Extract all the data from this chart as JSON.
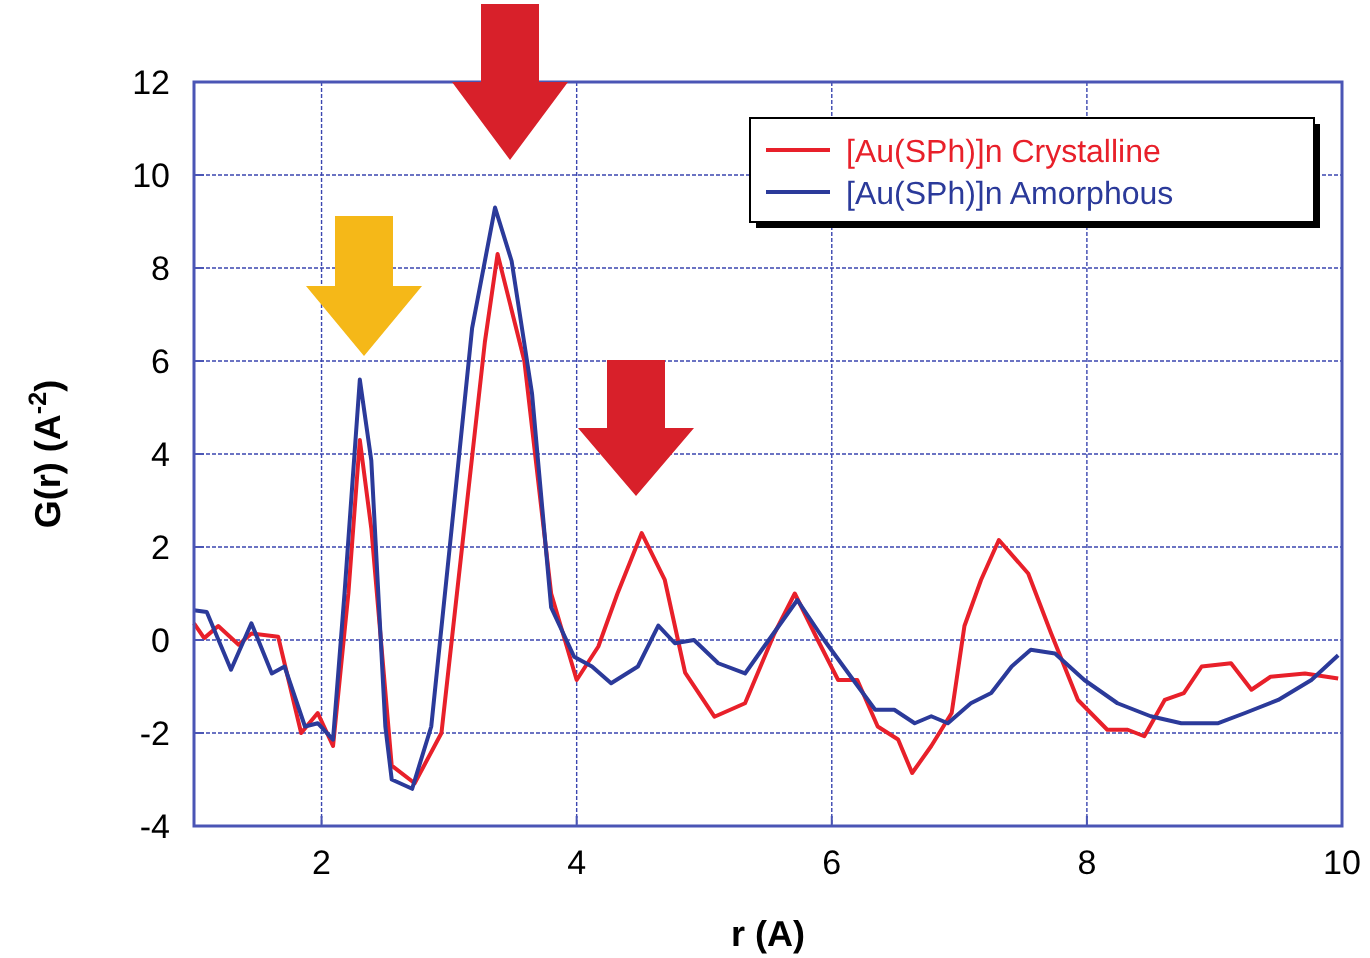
{
  "chart_data": {
    "type": "line",
    "xlabel": "r (A)",
    "ylabel": "G(r) (A$^{-2}$)",
    "xlim": [
      1,
      10
    ],
    "xticks": [
      2,
      4,
      6,
      8,
      10
    ],
    "ylim": [
      -4,
      12
    ],
    "yticks": [
      -4,
      -2,
      0,
      2,
      4,
      6,
      8,
      10,
      12
    ],
    "grid": true,
    "legend": "top right",
    "line_style": "solid",
    "marker": "none",
    "series": [
      {
        "name": "[Au(SPh)]n Crystalline",
        "color": "#e8202a",
        "x": [
          1.0,
          1.08,
          1.19,
          1.35,
          1.45,
          1.66,
          1.84,
          1.97,
          2.09,
          2.21,
          2.3,
          2.39,
          2.55,
          2.73,
          2.94,
          3.12,
          3.28,
          3.38,
          3.59,
          3.8,
          4.0,
          4.17,
          4.32,
          4.51,
          4.69,
          4.85,
          5.08,
          5.32,
          5.55,
          5.71,
          5.89,
          6.05,
          6.2,
          6.36,
          6.52,
          6.63,
          6.78,
          6.94,
          7.04,
          7.17,
          7.31,
          7.54,
          7.72,
          7.93,
          8.16,
          8.32,
          8.45,
          8.61,
          8.76,
          8.9,
          9.13,
          9.29,
          9.44,
          9.71,
          9.97
        ],
        "values": [
          0.36,
          0.04,
          0.3,
          -0.1,
          0.14,
          0.07,
          -2.0,
          -1.57,
          -2.28,
          1.0,
          4.3,
          2.4,
          -2.7,
          -3.08,
          -2.0,
          2.45,
          6.4,
          8.3,
          6.0,
          1.0,
          -0.86,
          -0.14,
          1.0,
          2.3,
          1.3,
          -0.7,
          -1.65,
          -1.36,
          0.14,
          1.0,
          0.0,
          -0.86,
          -0.86,
          -1.86,
          -2.14,
          -2.86,
          -2.28,
          -1.57,
          0.3,
          1.29,
          2.15,
          1.43,
          0.14,
          -1.29,
          -1.93,
          -1.93,
          -2.07,
          -1.29,
          -1.14,
          -0.57,
          -0.5,
          -1.07,
          -0.79,
          -0.72,
          -0.83
        ]
      },
      {
        "name": "[Au(SPh)]n Amorphous",
        "color": "#2b3a9a",
        "x": [
          1.0,
          1.1,
          1.29,
          1.45,
          1.61,
          1.71,
          1.87,
          1.97,
          2.09,
          2.18,
          2.3,
          2.39,
          2.5,
          2.55,
          2.71,
          2.86,
          3.02,
          3.18,
          3.36,
          3.49,
          3.65,
          3.8,
          3.98,
          4.12,
          4.27,
          4.48,
          4.64,
          4.77,
          4.92,
          5.11,
          5.32,
          5.47,
          5.73,
          5.94,
          6.15,
          6.34,
          6.49,
          6.65,
          6.78,
          6.91,
          7.09,
          7.25,
          7.41,
          7.56,
          7.75,
          7.98,
          8.24,
          8.5,
          8.74,
          9.03,
          9.24,
          9.5,
          9.76,
          9.97
        ],
        "values": [
          0.64,
          0.6,
          -0.64,
          0.36,
          -0.72,
          -0.57,
          -1.86,
          -1.79,
          -2.14,
          1.0,
          5.6,
          3.86,
          -1.86,
          -3.0,
          -3.2,
          -1.86,
          2.4,
          6.7,
          9.3,
          8.15,
          5.3,
          0.7,
          -0.36,
          -0.57,
          -0.93,
          -0.57,
          0.31,
          -0.07,
          0.0,
          -0.5,
          -0.72,
          -0.14,
          0.86,
          0.0,
          -0.79,
          -1.5,
          -1.5,
          -1.79,
          -1.64,
          -1.79,
          -1.36,
          -1.14,
          -0.57,
          -0.21,
          -0.29,
          -0.86,
          -1.36,
          -1.64,
          -1.79,
          -1.79,
          -1.57,
          -1.29,
          -0.86,
          -0.33
        ]
      }
    ]
  }
}
